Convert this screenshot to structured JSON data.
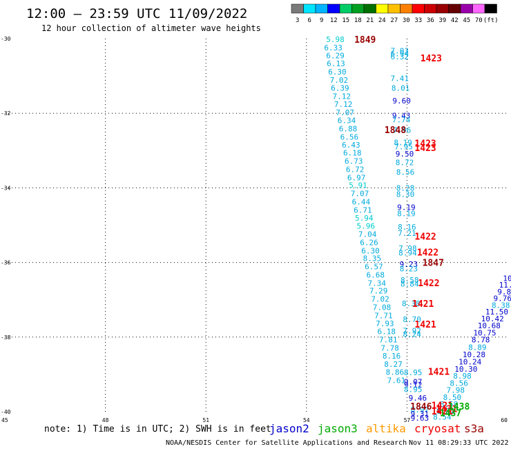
{
  "header": {
    "title": "12:00 – 23:59 UTC 11/09/2022",
    "subtitle": "12 hour collection of altimeter wave heights"
  },
  "colorbar": {
    "labels": [
      "3",
      "6",
      "9",
      "12",
      "15",
      "18",
      "21",
      "24",
      "27",
      "30",
      "33",
      "36",
      "39",
      "42",
      "45",
      "70",
      "(ft)"
    ],
    "colors": [
      "#7a7a7a",
      "#00e5ff",
      "#00b4ff",
      "#0000ff",
      "#00cc66",
      "#00a020",
      "#007000",
      "#ffff00",
      "#ffc000",
      "#ff8000",
      "#ff0000",
      "#cc0000",
      "#990000",
      "#660000",
      "#9900aa",
      "#ff66ff",
      "#000000"
    ]
  },
  "footer": {
    "note": "note:  1) Time is in UTC;  2) SWH is in feet",
    "credit": "NOAA/NESDIS Center for Satellite Applications and Research",
    "timestamp": "Nov 11 08:29:33 UTC 2022"
  },
  "legend": [
    {
      "name": "jason2",
      "color": "#0000cc"
    },
    {
      "name": "jason3",
      "color": "#00aa00"
    },
    {
      "name": "altika",
      "color": "#ff9900"
    },
    {
      "name": "cryosat",
      "color": "#ee0000"
    },
    {
      "name": "s3a",
      "color": "#990000"
    }
  ],
  "chart_data": {
    "type": "scatter",
    "xlim": [
      45,
      60
    ],
    "ylim": [
      -40,
      -30
    ],
    "xticks": [
      "45",
      "48",
      "51",
      "54",
      "57",
      "60"
    ],
    "yticks": [
      "-30",
      "-32",
      "-34",
      "-36",
      "-38",
      "-40"
    ],
    "grid": true,
    "points": [
      {
        "x": 54.86,
        "y": -30.02,
        "v": "5.98",
        "c": "#00cccc"
      },
      {
        "x": 54.8,
        "y": -30.24,
        "v": "6.33",
        "c": "#00aadd"
      },
      {
        "x": 54.86,
        "y": -30.45,
        "v": "6.29",
        "c": "#00aadd"
      },
      {
        "x": 54.88,
        "y": -30.67,
        "v": "6.13",
        "c": "#00aadd"
      },
      {
        "x": 54.92,
        "y": -30.89,
        "v": "6.30",
        "c": "#00aadd"
      },
      {
        "x": 54.97,
        "y": -31.11,
        "v": "7.02",
        "c": "#00aadd"
      },
      {
        "x": 55.0,
        "y": -31.32,
        "v": "6.39",
        "c": "#00aadd"
      },
      {
        "x": 55.05,
        "y": -31.54,
        "v": "7.12",
        "c": "#00aadd"
      },
      {
        "x": 55.1,
        "y": -31.76,
        "v": "7.12",
        "c": "#00aadd"
      },
      {
        "x": 55.15,
        "y": -31.98,
        "v": "7.07",
        "c": "#00aadd"
      },
      {
        "x": 55.2,
        "y": -32.19,
        "v": "6.34",
        "c": "#00aadd"
      },
      {
        "x": 55.24,
        "y": -32.41,
        "v": "6.88",
        "c": "#00aadd"
      },
      {
        "x": 55.28,
        "y": -32.63,
        "v": "6.56",
        "c": "#00aadd"
      },
      {
        "x": 55.33,
        "y": -32.85,
        "v": "6.43",
        "c": "#00aadd"
      },
      {
        "x": 55.37,
        "y": -33.06,
        "v": "6.18",
        "c": "#00aadd"
      },
      {
        "x": 55.41,
        "y": -33.28,
        "v": "6.73",
        "c": "#00aadd"
      },
      {
        "x": 55.45,
        "y": -33.5,
        "v": "6.72",
        "c": "#00aadd"
      },
      {
        "x": 55.49,
        "y": -33.72,
        "v": "6.97",
        "c": "#00aadd"
      },
      {
        "x": 55.54,
        "y": -33.93,
        "v": "5.91",
        "c": "#00cccc"
      },
      {
        "x": 55.59,
        "y": -34.15,
        "v": "7.07",
        "c": "#00aadd"
      },
      {
        "x": 55.63,
        "y": -34.37,
        "v": "6.44",
        "c": "#00aadd"
      },
      {
        "x": 55.68,
        "y": -34.59,
        "v": "6.71",
        "c": "#00aadd"
      },
      {
        "x": 55.72,
        "y": -34.81,
        "v": "5.94",
        "c": "#00cccc"
      },
      {
        "x": 55.77,
        "y": -35.02,
        "v": "5.96",
        "c": "#00cccc"
      },
      {
        "x": 55.82,
        "y": -35.24,
        "v": "7.04",
        "c": "#00aadd"
      },
      {
        "x": 55.87,
        "y": -35.46,
        "v": "6.26",
        "c": "#00aadd"
      },
      {
        "x": 55.91,
        "y": -35.68,
        "v": "6.30",
        "c": "#00aadd"
      },
      {
        "x": 55.96,
        "y": -35.89,
        "v": "8.35",
        "c": "#00aadd"
      },
      {
        "x": 56.01,
        "y": -36.11,
        "v": "6.57",
        "c": "#00aadd"
      },
      {
        "x": 56.06,
        "y": -36.33,
        "v": "6.68",
        "c": "#00aadd"
      },
      {
        "x": 56.1,
        "y": -36.55,
        "v": "7.34",
        "c": "#00aadd"
      },
      {
        "x": 56.15,
        "y": -36.76,
        "v": "7.29",
        "c": "#00aadd"
      },
      {
        "x": 56.2,
        "y": -36.98,
        "v": "7.02",
        "c": "#00aadd"
      },
      {
        "x": 56.25,
        "y": -37.2,
        "v": "7.08",
        "c": "#00aadd"
      },
      {
        "x": 56.3,
        "y": -37.42,
        "v": "7.71",
        "c": "#00aadd"
      },
      {
        "x": 56.34,
        "y": -37.63,
        "v": "7.93",
        "c": "#00aadd"
      },
      {
        "x": 56.39,
        "y": -37.85,
        "v": "6.18",
        "c": "#00aadd"
      },
      {
        "x": 56.44,
        "y": -38.07,
        "v": "7.81",
        "c": "#00aadd"
      },
      {
        "x": 56.49,
        "y": -38.29,
        "v": "7.78",
        "c": "#00aadd"
      },
      {
        "x": 56.54,
        "y": -38.5,
        "v": "8.16",
        "c": "#00aadd"
      },
      {
        "x": 56.59,
        "y": -38.72,
        "v": "8.27",
        "c": "#00aadd"
      },
      {
        "x": 56.64,
        "y": -38.94,
        "v": "8.86",
        "c": "#00aadd"
      },
      {
        "x": 56.68,
        "y": -39.16,
        "v": "7.61",
        "c": "#00aadd"
      },
      {
        "x": 56.78,
        "y": -30.32,
        "v": "7.03",
        "c": "#00aadd"
      },
      {
        "x": 56.78,
        "y": -30.4,
        "v": "6.94",
        "c": "#00aadd"
      },
      {
        "x": 56.78,
        "y": -30.48,
        "v": "6.32",
        "c": "#00aadd"
      },
      {
        "x": 56.78,
        "y": -31.06,
        "v": "7.41",
        "c": "#00aadd"
      },
      {
        "x": 56.81,
        "y": -31.32,
        "v": "8.01",
        "c": "#00aadd"
      },
      {
        "x": 56.84,
        "y": -31.66,
        "v": "9.60",
        "c": "#0000cc"
      },
      {
        "x": 56.83,
        "y": -32.06,
        "v": "9.43",
        "c": "#0000cc"
      },
      {
        "x": 56.83,
        "y": -32.17,
        "v": "7.74",
        "c": "#00aadd"
      },
      {
        "x": 56.85,
        "y": -32.45,
        "v": "7.96",
        "c": "#00aadd"
      },
      {
        "x": 56.88,
        "y": -32.78,
        "v": "8.19",
        "c": "#00aadd"
      },
      {
        "x": 56.9,
        "y": -32.89,
        "v": "7.95",
        "c": "#00aadd"
      },
      {
        "x": 56.93,
        "y": -33.09,
        "v": "9.50",
        "c": "#0000cc"
      },
      {
        "x": 56.93,
        "y": -33.32,
        "v": "8.72",
        "c": "#00aadd"
      },
      {
        "x": 56.95,
        "y": -33.58,
        "v": "8.56",
        "c": "#00aadd"
      },
      {
        "x": 56.95,
        "y": -34.0,
        "v": "8.28",
        "c": "#00aadd"
      },
      {
        "x": 56.95,
        "y": -34.17,
        "v": "8.30",
        "c": "#00aadd"
      },
      {
        "x": 56.98,
        "y": -34.52,
        "v": "9.19",
        "c": "#0000cc"
      },
      {
        "x": 56.98,
        "y": -34.69,
        "v": "8.19",
        "c": "#00aadd"
      },
      {
        "x": 57.0,
        "y": -35.05,
        "v": "8.16",
        "c": "#00aadd"
      },
      {
        "x": 57.0,
        "y": -35.21,
        "v": "7.21",
        "c": "#00aadd"
      },
      {
        "x": 57.02,
        "y": -35.62,
        "v": "7.98",
        "c": "#00aadd"
      },
      {
        "x": 57.02,
        "y": -35.74,
        "v": "8.94",
        "c": "#00aadd"
      },
      {
        "x": 57.05,
        "y": -36.04,
        "v": "9.23",
        "c": "#0000cc"
      },
      {
        "x": 57.05,
        "y": -36.16,
        "v": "8.23",
        "c": "#00aadd"
      },
      {
        "x": 57.08,
        "y": -36.47,
        "v": "8.58",
        "c": "#00aadd"
      },
      {
        "x": 57.08,
        "y": -36.57,
        "v": "8.84",
        "c": "#00aadd"
      },
      {
        "x": 57.12,
        "y": -37.1,
        "v": "8.38",
        "c": "#00aadd"
      },
      {
        "x": 57.15,
        "y": -37.52,
        "v": "8.70",
        "c": "#00aadd"
      },
      {
        "x": 57.15,
        "y": -37.83,
        "v": "7.92",
        "c": "#00aadd"
      },
      {
        "x": 57.15,
        "y": -37.92,
        "v": "8.24",
        "c": "#00aadd"
      },
      {
        "x": 57.18,
        "y": -38.95,
        "v": "8.95",
        "c": "#00aadd"
      },
      {
        "x": 57.18,
        "y": -39.2,
        "v": "9.07",
        "c": "#0000cc"
      },
      {
        "x": 57.18,
        "y": -39.28,
        "v": "9.12",
        "c": "#0000cc"
      },
      {
        "x": 57.18,
        "y": -39.4,
        "v": "8.95",
        "c": "#00aadd"
      },
      {
        "x": 57.32,
        "y": -39.63,
        "v": "9.46",
        "c": "#0000cc"
      },
      {
        "x": 57.38,
        "y": -39.94,
        "v": "8.97",
        "c": "#00aadd"
      },
      {
        "x": 57.38,
        "y": -40.06,
        "v": "9.31",
        "c": "#0000cc"
      },
      {
        "x": 57.38,
        "y": -40.17,
        "v": "9.63",
        "c": "#0000cc"
      },
      {
        "x": 60.0,
        "y": -36.42,
        "v": "10",
        "c": "#0000cc"
      },
      {
        "x": 59.95,
        "y": -36.6,
        "v": "11.",
        "c": "#0000cc"
      },
      {
        "x": 59.9,
        "y": -36.78,
        "v": "9.8",
        "c": "#0000cc"
      },
      {
        "x": 59.85,
        "y": -36.96,
        "v": "9.76",
        "c": "#0000cc"
      },
      {
        "x": 59.8,
        "y": -37.14,
        "v": "8.38",
        "c": "#00aadd"
      },
      {
        "x": 59.68,
        "y": -37.32,
        "v": "11.50",
        "c": "#0000cc"
      },
      {
        "x": 59.55,
        "y": -37.5,
        "v": "10.42",
        "c": "#0000cc"
      },
      {
        "x": 59.45,
        "y": -37.69,
        "v": "10.68",
        "c": "#0000cc"
      },
      {
        "x": 59.32,
        "y": -37.88,
        "v": "10.75",
        "c": "#0000cc"
      },
      {
        "x": 59.2,
        "y": -38.07,
        "v": "8.78",
        "c": "#0000cc"
      },
      {
        "x": 59.1,
        "y": -38.27,
        "v": "8.89",
        "c": "#00aadd"
      },
      {
        "x": 59.0,
        "y": -38.47,
        "v": "10.28",
        "c": "#0000cc"
      },
      {
        "x": 58.88,
        "y": -38.66,
        "v": "10.24",
        "c": "#0000cc"
      },
      {
        "x": 58.76,
        "y": -38.85,
        "v": "10.30",
        "c": "#0000cc"
      },
      {
        "x": 58.65,
        "y": -39.04,
        "v": "8.98",
        "c": "#00aadd"
      },
      {
        "x": 58.55,
        "y": -39.23,
        "v": "8.56",
        "c": "#00aadd"
      },
      {
        "x": 58.45,
        "y": -39.42,
        "v": "7.98",
        "c": "#00aadd"
      },
      {
        "x": 58.35,
        "y": -39.61,
        "v": "8.50",
        "c": "#00aadd"
      },
      {
        "x": 58.25,
        "y": -39.8,
        "v": "8.58",
        "c": "#00aadd"
      },
      {
        "x": 58.15,
        "y": -39.98,
        "v": "8.82",
        "c": "#00aadd"
      },
      {
        "x": 58.05,
        "y": -40.14,
        "v": "8.54",
        "c": "#00aadd"
      }
    ],
    "time_labels": [
      {
        "x": 55.75,
        "y": -30.02,
        "t": "1849",
        "c": "#990000"
      },
      {
        "x": 56.65,
        "y": -32.44,
        "t": "1848",
        "c": "#990000"
      },
      {
        "x": 57.78,
        "y": -36.0,
        "t": "1847",
        "c": "#990000"
      },
      {
        "x": 57.42,
        "y": -39.85,
        "t": "1846",
        "c": "#990000"
      },
      {
        "x": 57.72,
        "y": -30.52,
        "t": "1423",
        "c": "#ee0000"
      },
      {
        "x": 57.55,
        "y": -32.8,
        "t": "1423",
        "c": "#ee0000"
      },
      {
        "x": 57.55,
        "y": -32.92,
        "t": "1423",
        "c": "#ee0000"
      },
      {
        "x": 57.55,
        "y": -35.3,
        "t": "1422",
        "c": "#ee0000"
      },
      {
        "x": 57.62,
        "y": -35.72,
        "t": "1422",
        "c": "#ee0000"
      },
      {
        "x": 57.65,
        "y": -36.54,
        "t": "1422",
        "c": "#ee0000"
      },
      {
        "x": 57.48,
        "y": -37.1,
        "t": "1421",
        "c": "#ee0000"
      },
      {
        "x": 57.55,
        "y": -37.65,
        "t": "1421",
        "c": "#ee0000"
      },
      {
        "x": 57.95,
        "y": -38.92,
        "t": "1421",
        "c": "#ee0000"
      },
      {
        "x": 58.05,
        "y": -39.82,
        "t": "1421",
        "c": "#ee0000"
      },
      {
        "x": 58.05,
        "y": -39.98,
        "t": "1421",
        "c": "#ee0000"
      },
      {
        "x": 58.18,
        "y": -39.92,
        "t": "1421",
        "c": "#ee0000"
      },
      {
        "x": 58.55,
        "y": -39.85,
        "t": "1438",
        "c": "#00aa00"
      },
      {
        "x": 58.3,
        "y": -40.03,
        "t": "1437",
        "c": "#00aa00"
      }
    ]
  }
}
